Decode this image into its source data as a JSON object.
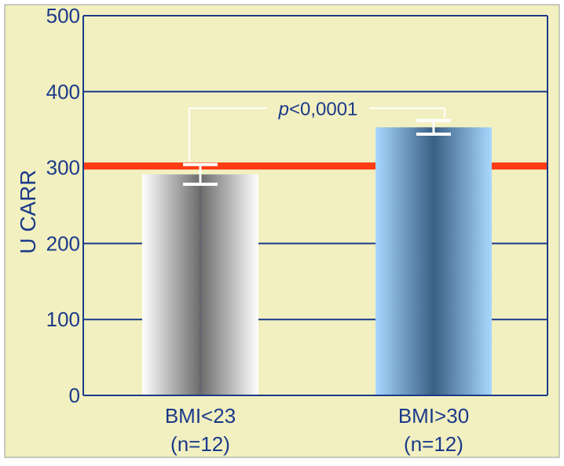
{
  "chart_data": {
    "type": "bar",
    "ylabel": "U CARR",
    "ylim": [
      0,
      500
    ],
    "yticks": [
      "0",
      "100",
      "200",
      "300",
      "400",
      "500"
    ],
    "grid": true,
    "categories": [
      {
        "line1": "BMI<23",
        "line2": "(n=12)"
      },
      {
        "line1": "BMI>30",
        "line2": "(n=12)"
      }
    ],
    "values": [
      291,
      353
    ],
    "error": [
      13,
      9
    ],
    "reference_line": {
      "value": 302,
      "color": "#ff3c14"
    },
    "significance": {
      "prefix": "p",
      "text": "<0,0001"
    },
    "colors": {
      "plot_bg": "#f2f0c0",
      "grid": "#1b3a8a",
      "bar1": [
        "#ffffff",
        "#6b6b6b"
      ],
      "bar2": [
        "#a8d8ff",
        "#3a5f84"
      ]
    }
  }
}
